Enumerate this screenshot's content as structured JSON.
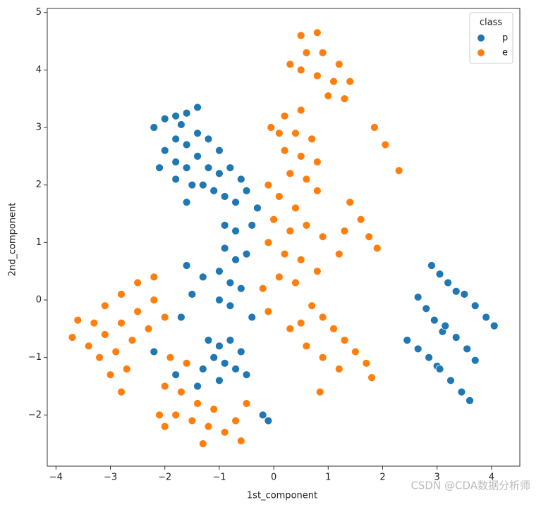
{
  "chart_data": {
    "type": "scatter",
    "x_label": "1st_component",
    "y_label": "2nd_component",
    "legend_title": "class",
    "legend_position": "upper right",
    "watermark": "CSDN @CDA数据分析师",
    "xlim": [
      -4.16,
      4.52
    ],
    "ylim": [
      -2.89,
      5.07
    ],
    "xticks": [
      {
        "value": -4,
        "label": "−4"
      },
      {
        "value": -3,
        "label": "−3"
      },
      {
        "value": -2,
        "label": "−2"
      },
      {
        "value": -1,
        "label": "−1"
      },
      0,
      1,
      2,
      3,
      4
    ],
    "yticks": [
      {
        "value": -2,
        "label": "−2"
      },
      {
        "value": -1,
        "label": "−1"
      },
      0,
      1,
      2,
      3,
      4,
      5
    ],
    "series": [
      {
        "name": "p",
        "color": "#1f77b4",
        "x": [
          -2.2,
          -2.0,
          -1.8,
          -1.6,
          -1.4,
          -1.7,
          -2.0,
          -1.8,
          -1.6,
          -1.4,
          -1.2,
          -1.0,
          -1.8,
          -1.6,
          -1.4,
          -1.2,
          -1.0,
          -0.8,
          -0.6,
          -1.5,
          -1.3,
          -1.1,
          -0.9,
          -0.7,
          -0.5,
          -0.3,
          -0.4,
          -1.6,
          -1.8,
          -2.1,
          -0.9,
          -0.7,
          -0.9,
          -0.7,
          -0.5,
          -1.0,
          -0.8,
          -0.6,
          -1.0,
          -0.8,
          -1.3,
          -1.6,
          -1.5,
          -0.4,
          -1.7,
          -1.2,
          -1.0,
          -0.8,
          -0.6,
          -1.1,
          -0.9,
          -0.7,
          -0.5,
          -1.3,
          -1.0,
          -2.2,
          -1.8,
          -1.4,
          -0.2,
          -0.1,
          2.9,
          3.05,
          3.2,
          3.35,
          2.65,
          2.8,
          2.95,
          3.1,
          3.5,
          3.7,
          3.9,
          4.05,
          2.45,
          2.65,
          2.85,
          3.0,
          3.15,
          3.35,
          3.55,
          3.7,
          3.05,
          3.25,
          3.45,
          3.6
        ],
        "values": [
          3.0,
          3.15,
          3.2,
          3.25,
          3.35,
          3.05,
          2.6,
          2.8,
          2.7,
          2.9,
          2.8,
          2.6,
          2.4,
          2.3,
          2.5,
          2.3,
          2.2,
          2.3,
          2.1,
          2.0,
          2.0,
          1.9,
          1.8,
          1.7,
          1.9,
          1.6,
          1.3,
          1.7,
          2.1,
          2.3,
          1.3,
          1.2,
          0.9,
          0.7,
          0.8,
          0.5,
          0.3,
          0.2,
          0.0,
          -0.1,
          0.4,
          0.6,
          0.1,
          -0.3,
          -0.3,
          -0.7,
          -0.8,
          -0.7,
          -0.9,
          -1.0,
          -1.1,
          -1.2,
          -1.3,
          -1.2,
          -1.4,
          -0.9,
          -1.3,
          -1.5,
          -2.0,
          -2.1,
          0.6,
          0.45,
          0.3,
          0.15,
          0.05,
          -0.15,
          -0.35,
          -0.55,
          0.1,
          -0.1,
          -0.3,
          -0.45,
          -0.7,
          -0.85,
          -1.0,
          -1.15,
          -0.45,
          -0.65,
          -0.85,
          -1.05,
          -1.2,
          -1.4,
          -1.6,
          -1.75
        ]
      },
      {
        "name": "e",
        "color": "#ff7f0e",
        "x": [
          0.5,
          0.8,
          0.6,
          0.9,
          1.2,
          0.5,
          0.8,
          1.1,
          1.4,
          1.0,
          1.3,
          0.3,
          0.2,
          0.5,
          0.1,
          0.4,
          0.7,
          0.2,
          0.5,
          0.8,
          0.3,
          0.6,
          0.8,
          -0.05,
          1.85,
          2.05,
          2.3,
          1.4,
          1.6,
          1.75,
          1.9,
          1.3,
          1.2,
          -0.1,
          0.1,
          0.4,
          0.0,
          0.3,
          0.6,
          0.9,
          -0.1,
          0.2,
          0.5,
          0.8,
          0.1,
          0.4,
          -0.2,
          -0.1,
          0.7,
          0.9,
          1.1,
          1.3,
          1.5,
          1.7,
          1.8,
          0.3,
          0.6,
          0.9,
          1.2,
          0.85,
          0.5,
          -3.7,
          -3.6,
          -3.3,
          -3.1,
          -2.8,
          -2.5,
          -2.2,
          -3.4,
          -3.1,
          -2.8,
          -2.5,
          -2.2,
          -3.2,
          -2.9,
          -2.6,
          -2.3,
          -3.0,
          -2.7,
          -2.8,
          -2.0,
          -1.9,
          -1.6,
          -2.0,
          -1.7,
          -1.4,
          -1.1,
          -1.8,
          -1.5,
          -1.2,
          -0.9,
          -1.3,
          -0.7,
          -0.5,
          -0.6,
          -2.1,
          -2.0
        ],
        "values": [
          4.6,
          4.65,
          4.3,
          4.3,
          4.1,
          4.0,
          3.9,
          3.8,
          3.8,
          3.55,
          3.5,
          4.1,
          3.2,
          3.3,
          2.9,
          2.9,
          2.8,
          2.6,
          2.5,
          2.4,
          2.2,
          2.1,
          1.9,
          3.0,
          3.0,
          2.7,
          2.25,
          1.7,
          1.4,
          1.1,
          0.9,
          1.2,
          0.8,
          2.0,
          1.8,
          1.6,
          1.4,
          1.2,
          1.3,
          1.1,
          1.0,
          0.8,
          0.7,
          0.5,
          0.4,
          0.3,
          0.2,
          -0.2,
          -0.1,
          -0.3,
          -0.5,
          -0.7,
          -0.9,
          -1.1,
          -1.35,
          -0.5,
          -0.8,
          -1.0,
          -1.2,
          -1.6,
          -0.4,
          -0.65,
          -0.35,
          -0.4,
          -0.1,
          0.1,
          0.3,
          0.4,
          -0.8,
          -0.6,
          -0.4,
          -0.2,
          0.0,
          -1.0,
          -0.9,
          -0.7,
          -0.5,
          -1.3,
          -1.2,
          -1.6,
          -0.3,
          -1.0,
          -1.1,
          -1.5,
          -1.6,
          -1.8,
          -1.9,
          -2.0,
          -2.1,
          -2.2,
          -2.3,
          -2.5,
          -2.1,
          -1.8,
          -2.45,
          -2.0,
          -2.2
        ]
      }
    ]
  }
}
